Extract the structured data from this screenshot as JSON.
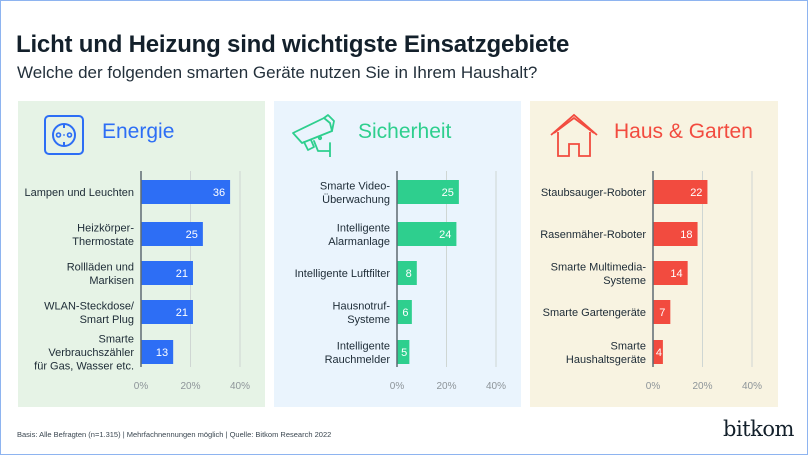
{
  "header": {
    "title": "Licht und Heizung sind wichtigste Einsatzgebiete",
    "subtitle": "Welche der folgenden smarten Geräte nutzen Sie in Ihrem Haushalt?"
  },
  "footer": {
    "note": "Basis: Alle Befragten (n=1.315) | Mehrfachnennungen möglich | Quelle: Bitkom Research 2022",
    "logo": "bitkom"
  },
  "chart_data": [
    {
      "type": "bar",
      "orientation": "horizontal",
      "title": "Energie",
      "icon": "power-socket-icon",
      "color": "#2d6ef5",
      "background": "#e6f3e6",
      "categories": [
        [
          "Lampen und Leuchten"
        ],
        [
          "Heizkörper-",
          "Thermostate"
        ],
        [
          "Rollläden und",
          "Markisen"
        ],
        [
          "WLAN-Steckdose/",
          "Smart Plug"
        ],
        [
          "Smarte",
          "Verbrauchszähler",
          "für Gas, Wasser etc."
        ]
      ],
      "values": [
        36,
        25,
        21,
        21,
        13
      ],
      "xlim": [
        0,
        40
      ],
      "xticks": [
        "0%",
        "20%",
        "40%"
      ],
      "unit": "%",
      "grid": true
    },
    {
      "type": "bar",
      "orientation": "horizontal",
      "title": "Sicherheit",
      "icon": "security-camera-icon",
      "color": "#2ecf8e",
      "background": "#eaf4fd",
      "categories": [
        [
          "Smarte Video-",
          "Überwachung"
        ],
        [
          "Intelligente",
          "Alarmanlage"
        ],
        [
          "Intelligente Luftfilter"
        ],
        [
          "Hausnotruf-",
          "Systeme"
        ],
        [
          "Intelligente",
          "Rauchmelder"
        ]
      ],
      "values": [
        25,
        24,
        8,
        6,
        5
      ],
      "xlim": [
        0,
        40
      ],
      "xticks": [
        "0%",
        "20%",
        "40%"
      ],
      "unit": "%",
      "grid": true
    },
    {
      "type": "bar",
      "orientation": "horizontal",
      "title": "Haus & Garten",
      "icon": "house-icon",
      "color": "#f24b3f",
      "background": "#f8f3e1",
      "categories": [
        [
          "Staubsauger-Roboter"
        ],
        [
          "Rasenmäher-Roboter"
        ],
        [
          "Smarte Multimedia-",
          "Systeme"
        ],
        [
          "Smarte Gartengeräte"
        ],
        [
          "Smarte",
          "Haushaltsgeräte"
        ]
      ],
      "values": [
        22,
        18,
        14,
        7,
        4
      ],
      "xlim": [
        0,
        40
      ],
      "xticks": [
        "0%",
        "20%",
        "40%"
      ],
      "unit": "%",
      "grid": true
    }
  ]
}
